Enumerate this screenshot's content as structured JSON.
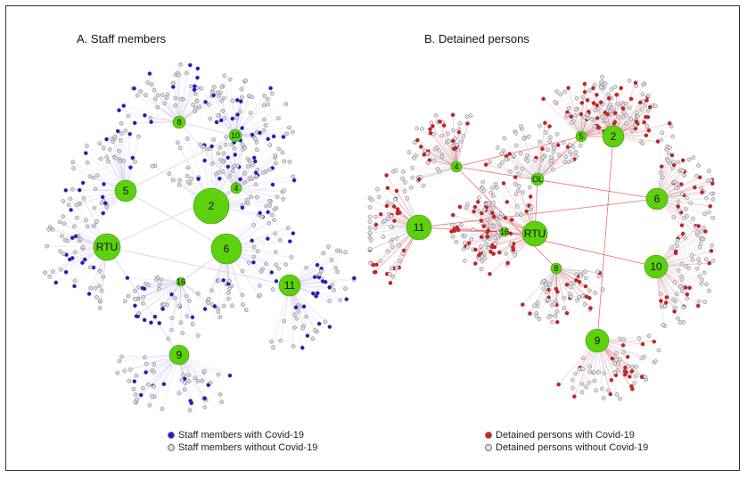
{
  "panels": [
    {
      "title": "A. Staff members",
      "hubs": [
        "8",
        "10",
        "5",
        "4",
        "2",
        "RTU",
        "6",
        "16",
        "11",
        "9"
      ],
      "legend": [
        {
          "label": "Staff members with Covid-19",
          "color": "#1a1ad6"
        },
        {
          "label": "Staff members without Covid-19",
          "color": "#d8d8e0"
        }
      ]
    },
    {
      "title": "B. Detained persons",
      "hubs": [
        "4",
        "5",
        "2",
        "OL",
        "6",
        "11",
        "16",
        "RTU",
        "10",
        "8",
        "9"
      ],
      "legend": [
        {
          "label": "Detained persons with Covid-19",
          "color": "#e01818"
        },
        {
          "label": "Detained persons without Covid-19",
          "color": "#e4dce8"
        }
      ]
    }
  ],
  "colors": {
    "hub": "#5ed10f",
    "edge_a": "#c9b8e8",
    "edge_b": "#e23030"
  }
}
